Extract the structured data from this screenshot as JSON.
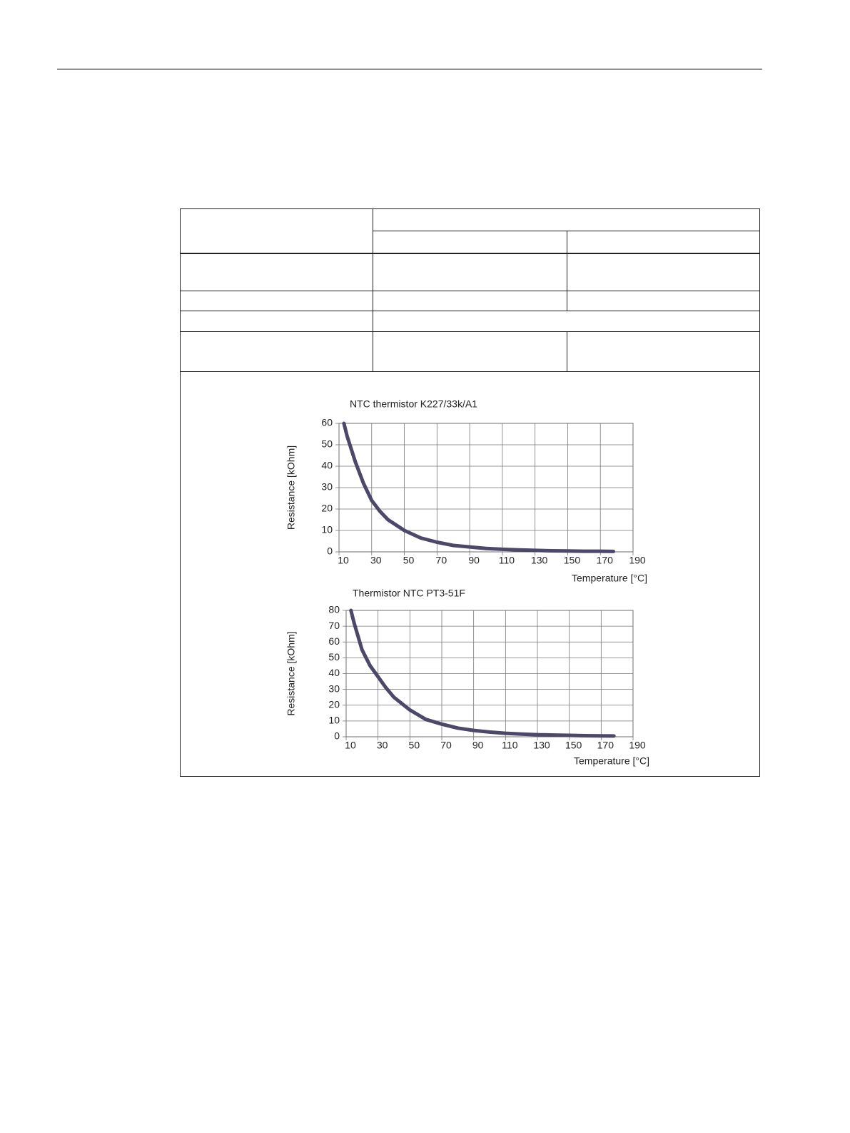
{
  "chart_data": [
    {
      "type": "line",
      "title": "NTC thermistor K227/33k/A1",
      "x_label": "Temperature [°C]",
      "y_label": "Resistance [kOhm]",
      "x": [
        13,
        15,
        20,
        25,
        30,
        35,
        40,
        50,
        60,
        70,
        80,
        90,
        100,
        110,
        120,
        130,
        140,
        150,
        160,
        170,
        178
      ],
      "values": [
        60,
        54,
        42,
        32,
        24,
        19,
        15,
        10,
        6.5,
        4.5,
        3,
        2.3,
        1.6,
        1.2,
        0.9,
        0.7,
        0.5,
        0.4,
        0.3,
        0.3,
        0.2
      ],
      "color": "#4b4869",
      "xlim": [
        10,
        190
      ],
      "xticks": [
        10,
        30,
        50,
        70,
        90,
        110,
        130,
        150,
        170,
        190
      ],
      "ylim": [
        0,
        60
      ],
      "yticks": [
        0,
        10,
        20,
        30,
        40,
        50,
        60
      ],
      "grid": true
    },
    {
      "type": "line",
      "title": "Thermistor NTC PT3-51F",
      "x_label": "Temperature [°C]",
      "y_label": "Resistance [kOhm]",
      "x": [
        13,
        15,
        20,
        25,
        30,
        35,
        40,
        50,
        60,
        70,
        80,
        90,
        100,
        110,
        120,
        130,
        140,
        150,
        160,
        170,
        178
      ],
      "values": [
        80,
        72,
        55,
        45,
        38,
        31,
        25,
        17,
        11,
        8,
        5.5,
        4,
        3,
        2.2,
        1.7,
        1.3,
        1.1,
        0.9,
        0.7,
        0.6,
        0.5
      ],
      "color": "#4b4869",
      "xlim": [
        10,
        190
      ],
      "xticks": [
        10,
        30,
        50,
        70,
        90,
        110,
        130,
        150,
        170,
        190
      ],
      "ylim": [
        0,
        80
      ],
      "yticks": [
        0,
        10,
        20,
        30,
        40,
        50,
        60,
        70,
        80
      ],
      "grid": true
    }
  ]
}
